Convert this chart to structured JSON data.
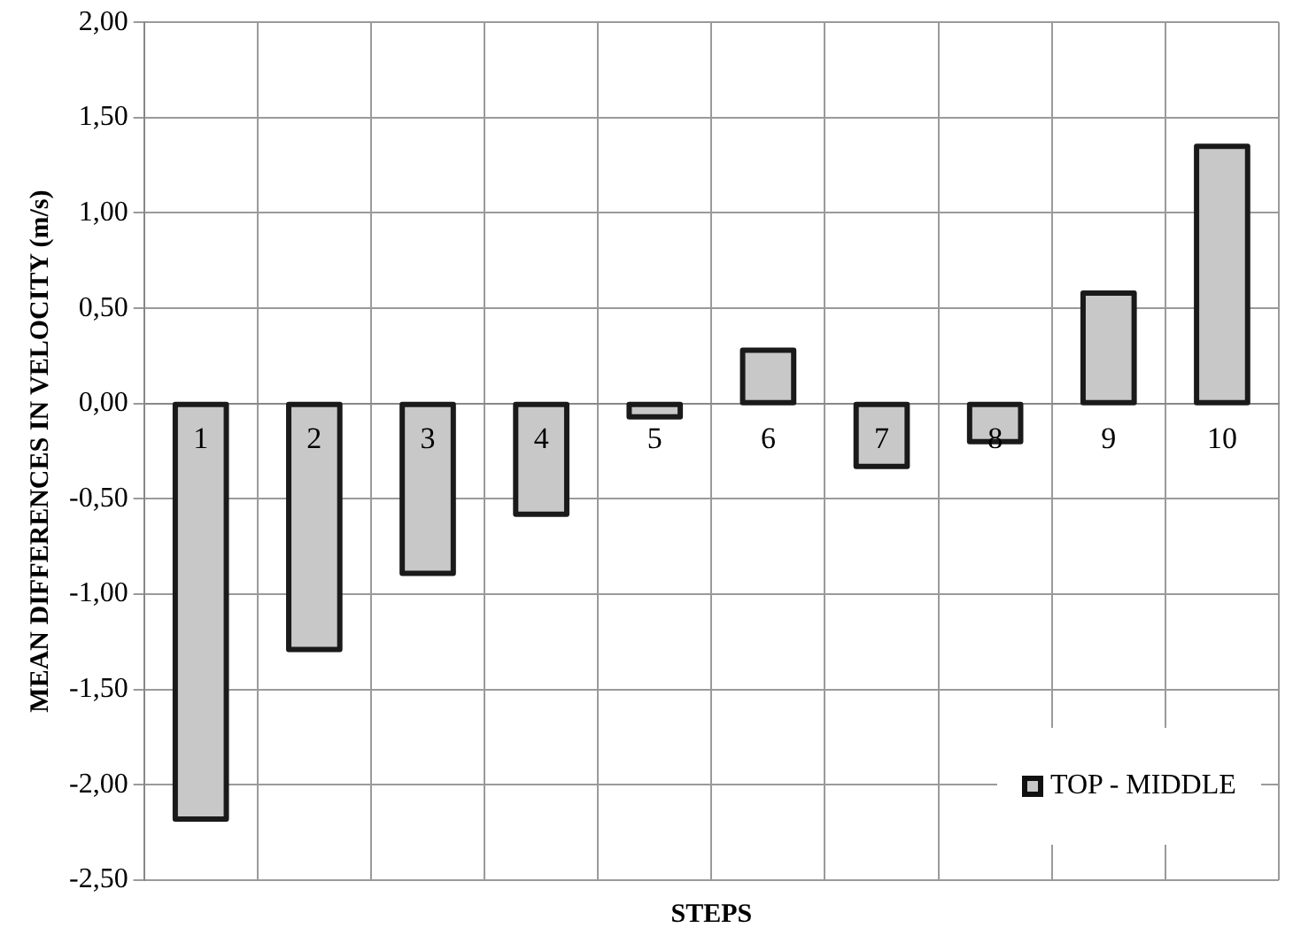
{
  "chart_data": {
    "type": "bar",
    "xlabel": "STEPS",
    "ylabel": "MEAN DIFFERENCES IN VELOCITY (m/s)",
    "categories": [
      "1",
      "2",
      "3",
      "4",
      "5",
      "6",
      "7",
      "8",
      "9",
      "10"
    ],
    "series": [
      {
        "name": "TOP - MIDDLE",
        "color": "#c8c8c8",
        "values": [
          -2.18,
          -1.29,
          -0.89,
          -0.58,
          -0.07,
          0.28,
          -0.33,
          -0.2,
          0.58,
          1.35
        ]
      }
    ],
    "ylim": [
      -2.5,
      2
    ],
    "yticks": [
      {
        "value": -2.5,
        "label": "-2,50"
      },
      {
        "value": -2,
        "label": "-2,00"
      },
      {
        "value": -1.5,
        "label": "-1,50"
      },
      {
        "value": -1,
        "label": "-1,00"
      },
      {
        "value": -0.5,
        "label": "-0,50"
      },
      {
        "value": 0,
        "label": "0,00"
      },
      {
        "value": 0.5,
        "label": "0,50"
      },
      {
        "value": 1,
        "label": "1,00"
      },
      {
        "value": 1.5,
        "label": "1,50"
      },
      {
        "value": 2,
        "label": "2,00"
      }
    ],
    "grid": true,
    "legend": "bottom right"
  }
}
